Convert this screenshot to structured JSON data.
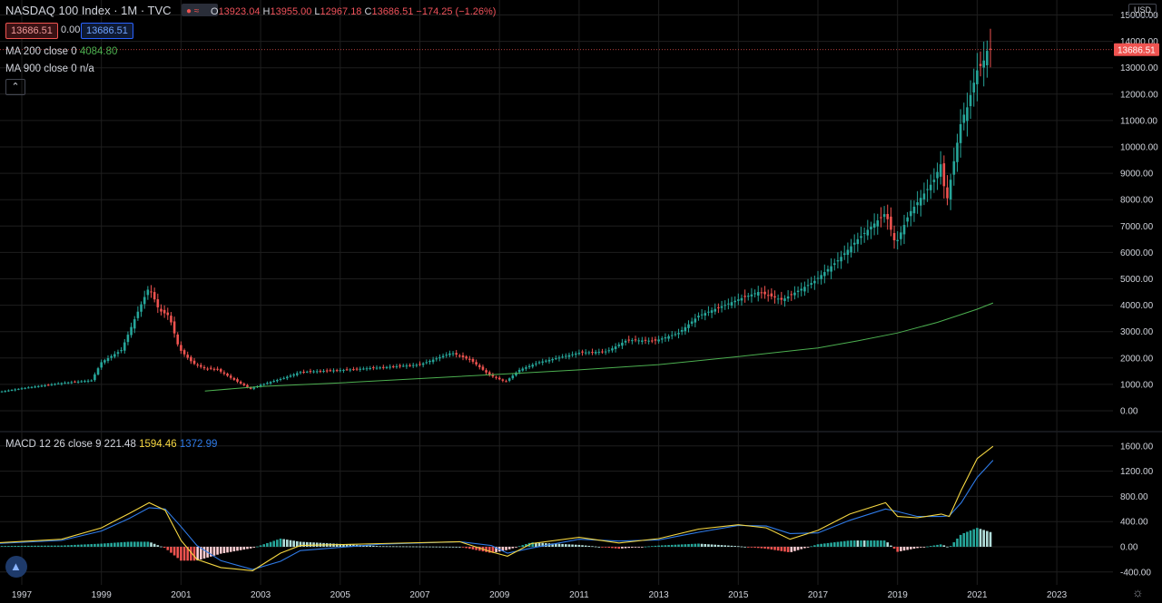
{
  "header": {
    "symbol_title": "NASDAQ 100 Index · 1M · TVC",
    "ohlc": {
      "o_label": "O",
      "o": "13923.04",
      "h_label": "H",
      "h": "13955.00",
      "l_label": "L",
      "l": "12967.18",
      "c_label": "C",
      "c": "13686.51",
      "change": "−174.25 (−1.26%)"
    },
    "price_pill_red": "13686.51",
    "spread": "0.00",
    "price_pill_blue": "13686.51",
    "currency": "USD"
  },
  "indicators": {
    "ma200": {
      "label": "MA 200 close 0",
      "value": "4084.80",
      "color": "#4caf50"
    },
    "ma900": {
      "label": "MA 900 close 0",
      "value": "n/a"
    },
    "macd": {
      "label": "MACD 12 26 close 9",
      "hist": "221.48",
      "macd": "1594.46",
      "signal": "1372.99",
      "hist_color": "#d1d4dc",
      "macd_color": "#f5d742",
      "signal_color": "#2f7be8"
    }
  },
  "colors": {
    "up": "#26a69a",
    "down": "#ef5350",
    "ma": "#4caf50",
    "grid": "#1e1e1e"
  },
  "chart_data": [
    {
      "type": "candlestick",
      "title": "NASDAQ 100 Index",
      "ylim": [
        0,
        15000
      ],
      "y_ticks": [
        "15000.00",
        "14000.00",
        "13000.00",
        "12000.00",
        "11000.00",
        "10000.00",
        "9000.00",
        "8000.00",
        "7000.00",
        "6000.00",
        "5000.00",
        "4000.00",
        "3000.00",
        "2000.00",
        "1000.00",
        "0.00"
      ],
      "x_ticks": [
        "1997",
        "1999",
        "2001",
        "2003",
        "2005",
        "2007",
        "2009",
        "2011",
        "2013",
        "2015",
        "2017",
        "2019",
        "2021",
        "2023"
      ],
      "last_price": "13686.51",
      "close_anchors": [
        [
          1996.0,
          610
        ],
        [
          1997.0,
          850
        ],
        [
          1998.0,
          1050
        ],
        [
          1998.75,
          1150
        ],
        [
          1999.0,
          1840
        ],
        [
          1999.5,
          2300
        ],
        [
          1999.9,
          3700
        ],
        [
          2000.2,
          4700
        ],
        [
          2000.45,
          3800
        ],
        [
          2000.7,
          3600
        ],
        [
          2000.95,
          2350
        ],
        [
          2001.3,
          1800
        ],
        [
          2001.6,
          1600
        ],
        [
          2001.9,
          1580
        ],
        [
          2002.3,
          1200
        ],
        [
          2002.75,
          830
        ],
        [
          2003.0,
          980
        ],
        [
          2003.6,
          1250
        ],
        [
          2004.0,
          1470
        ],
        [
          2005.0,
          1540
        ],
        [
          2006.0,
          1640
        ],
        [
          2007.0,
          1750
        ],
        [
          2007.8,
          2200
        ],
        [
          2008.3,
          1900
        ],
        [
          2008.75,
          1350
        ],
        [
          2009.15,
          1100
        ],
        [
          2009.5,
          1550
        ],
        [
          2010.0,
          1840
        ],
        [
          2011.0,
          2200
        ],
        [
          2011.7,
          2250
        ],
        [
          2012.2,
          2680
        ],
        [
          2012.9,
          2650
        ],
        [
          2013.5,
          2950
        ],
        [
          2014.0,
          3600
        ],
        [
          2015.0,
          4220
        ],
        [
          2015.5,
          4500
        ],
        [
          2016.1,
          4200
        ],
        [
          2016.9,
          4900
        ],
        [
          2017.5,
          5700
        ],
        [
          2018.0,
          6500
        ],
        [
          2018.7,
          7500
        ],
        [
          2018.95,
          6300
        ],
        [
          2019.3,
          7500
        ],
        [
          2019.9,
          8700
        ],
        [
          2020.1,
          9400
        ],
        [
          2020.22,
          7800
        ],
        [
          2020.6,
          11000
        ],
        [
          2020.75,
          11500
        ],
        [
          2021.0,
          12900
        ],
        [
          2021.15,
          13200
        ],
        [
          2021.3,
          13860
        ],
        [
          2021.4,
          13686
        ]
      ],
      "ma200_points": [
        [
          2001.6,
          750
        ],
        [
          2003.0,
          920
        ],
        [
          2005.0,
          1060
        ],
        [
          2007.0,
          1220
        ],
        [
          2009.0,
          1380
        ],
        [
          2011.0,
          1550
        ],
        [
          2013.0,
          1750
        ],
        [
          2015.0,
          2050
        ],
        [
          2017.0,
          2380
        ],
        [
          2018.0,
          2650
        ],
        [
          2019.0,
          2950
        ],
        [
          2020.0,
          3350
        ],
        [
          2021.0,
          3850
        ],
        [
          2021.4,
          4085
        ]
      ],
      "ma200_label": "MA 200 close 0"
    },
    {
      "type": "macd",
      "title": "MACD 12 26 close 9",
      "ylim": [
        -500,
        1700
      ],
      "y_ticks": [
        "1600.00",
        "1200.00",
        "800.00",
        "400.00",
        "0.00",
        "-400.00"
      ],
      "macd_points": [
        [
          1996.0,
          50
        ],
        [
          1998.0,
          120
        ],
        [
          1999.0,
          300
        ],
        [
          1999.7,
          530
        ],
        [
          2000.2,
          700
        ],
        [
          2000.6,
          580
        ],
        [
          2001.0,
          100
        ],
        [
          2001.4,
          -200
        ],
        [
          2002.0,
          -330
        ],
        [
          2002.8,
          -380
        ],
        [
          2003.5,
          -100
        ],
        [
          2004.0,
          20
        ],
        [
          2006.0,
          50
        ],
        [
          2008.0,
          80
        ],
        [
          2008.8,
          -80
        ],
        [
          2009.2,
          -150
        ],
        [
          2009.8,
          50
        ],
        [
          2011.0,
          150
        ],
        [
          2012.0,
          60
        ],
        [
          2013.0,
          130
        ],
        [
          2014.0,
          280
        ],
        [
          2015.0,
          350
        ],
        [
          2015.7,
          300
        ],
        [
          2016.3,
          120
        ],
        [
          2017.0,
          260
        ],
        [
          2017.8,
          520
        ],
        [
          2018.7,
          700
        ],
        [
          2019.0,
          480
        ],
        [
          2019.5,
          460
        ],
        [
          2020.1,
          520
        ],
        [
          2020.3,
          480
        ],
        [
          2020.6,
          900
        ],
        [
          2021.0,
          1400
        ],
        [
          2021.4,
          1594
        ]
      ],
      "signal_points": [
        [
          1996.0,
          40
        ],
        [
          1998.0,
          100
        ],
        [
          1999.0,
          250
        ],
        [
          1999.7,
          450
        ],
        [
          2000.2,
          620
        ],
        [
          2000.6,
          600
        ],
        [
          2001.0,
          320
        ],
        [
          2001.4,
          20
        ],
        [
          2002.0,
          -220
        ],
        [
          2002.8,
          -360
        ],
        [
          2003.5,
          -230
        ],
        [
          2004.0,
          -60
        ],
        [
          2006.0,
          40
        ],
        [
          2008.0,
          80
        ],
        [
          2008.8,
          20
        ],
        [
          2009.2,
          -100
        ],
        [
          2009.8,
          -20
        ],
        [
          2011.0,
          120
        ],
        [
          2012.0,
          90
        ],
        [
          2013.0,
          110
        ],
        [
          2014.0,
          230
        ],
        [
          2015.0,
          340
        ],
        [
          2015.7,
          330
        ],
        [
          2016.3,
          210
        ],
        [
          2017.0,
          220
        ],
        [
          2017.8,
          420
        ],
        [
          2018.7,
          600
        ],
        [
          2019.0,
          560
        ],
        [
          2019.5,
          480
        ],
        [
          2020.1,
          480
        ],
        [
          2020.3,
          490
        ],
        [
          2020.6,
          700
        ],
        [
          2021.0,
          1100
        ],
        [
          2021.4,
          1373
        ]
      ],
      "last_hist": "221.48"
    }
  ]
}
